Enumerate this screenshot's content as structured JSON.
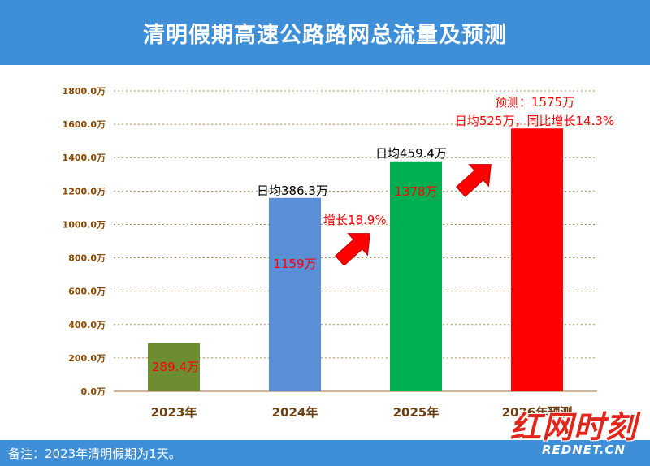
{
  "title": "清明假期高速公路路网总流量及预测",
  "footer_note": "备注：2023年清明假期为1天。",
  "watermark": {
    "main": "红网时刻",
    "sub": "REDNET.CN"
  },
  "colors": {
    "title_bar": "#3f8fd8",
    "bar_2023": "#6e8c32",
    "bar_2024": "#5a8fd6",
    "bar_2025": "#00b050",
    "bar_2026": "#ff0000",
    "accent_red": "#ff0000",
    "axis_text": "#8a4a00",
    "grid": "#b08a50"
  },
  "chart_data": {
    "type": "bar",
    "categories": [
      "2023年",
      "2024年",
      "2025年",
      "2026年预测"
    ],
    "values": [
      289.4,
      1159,
      1378,
      1575
    ],
    "value_labels": [
      "289.4万",
      "1159万",
      "1378万",
      ""
    ],
    "daily_labels": [
      "",
      "日均386.3万",
      "日均459.4万",
      ""
    ],
    "growth_labels": [
      "",
      "",
      "增长18.9%",
      ""
    ],
    "forecast_labels": [
      "预测：1575万",
      "日均525万，同比增长14.3%"
    ],
    "ylim": [
      0,
      1800
    ],
    "yticks": [
      "0.0万",
      "200.0万",
      "400.0万",
      "600.0万",
      "800.0万",
      "1000.0万",
      "1200.0万",
      "1400.0万",
      "1600.0万",
      "1800.0万"
    ],
    "grid": true,
    "legend": false
  }
}
